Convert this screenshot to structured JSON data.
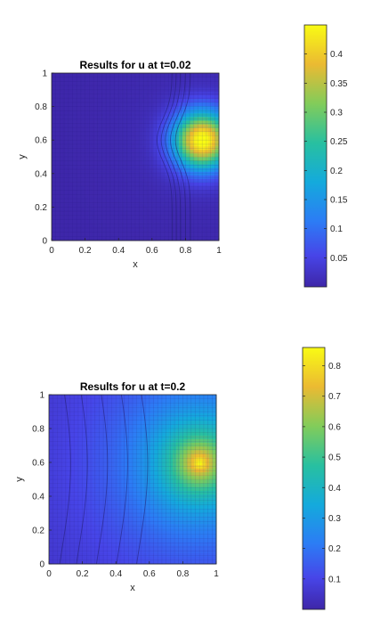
{
  "chart_data": [
    {
      "type": "heatmap",
      "title": "Results for u at t=0.02",
      "xlabel": "x",
      "ylabel": "y",
      "xlim": [
        0,
        1
      ],
      "ylim": [
        0,
        1
      ],
      "x_ticks": [
        "0",
        "0.2",
        "0.4",
        "0.6",
        "0.8",
        "1"
      ],
      "y_ticks": [
        "0",
        "0.2",
        "0.4",
        "0.6",
        "0.8",
        "1"
      ],
      "colorbar": {
        "range": [
          0,
          0.45
        ],
        "ticks": [
          0.05,
          0.1,
          0.15,
          0.2,
          0.25,
          0.3,
          0.35,
          0.4
        ],
        "tick_labels": [
          "0.05",
          "0.1",
          "0.15",
          "0.2",
          "0.25",
          "0.3",
          "0.35",
          "0.4"
        ]
      },
      "colormap": "parula",
      "peak": {
        "x": 0.9,
        "y": 0.6,
        "value": 0.45
      },
      "front_x": 0.72,
      "grid": false
    },
    {
      "type": "heatmap",
      "title": "Results for u at t=0.2",
      "xlabel": "x",
      "ylabel": "y",
      "xlim": [
        0,
        1
      ],
      "ylim": [
        0,
        1
      ],
      "x_ticks": [
        "0",
        "0.2",
        "0.4",
        "0.6",
        "0.8",
        "1"
      ],
      "y_ticks": [
        "0",
        "0.2",
        "0.4",
        "0.6",
        "0.8",
        "1"
      ],
      "colorbar": {
        "range": [
          0,
          0.86
        ],
        "ticks": [
          0.1,
          0.2,
          0.3,
          0.4,
          0.5,
          0.6,
          0.7,
          0.8
        ],
        "tick_labels": [
          "0.1",
          "0.2",
          "0.3",
          "0.4",
          "0.5",
          "0.6",
          "0.7",
          "0.8"
        ]
      },
      "colormap": "parula",
      "peak": {
        "x": 0.9,
        "y": 0.6,
        "value": 0.86
      },
      "front_x": 0.1,
      "grid": false
    }
  ]
}
